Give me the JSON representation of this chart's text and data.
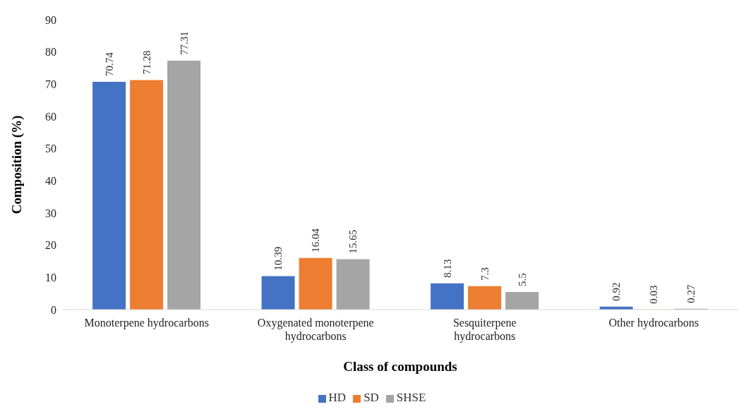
{
  "chart_data": {
    "type": "bar",
    "xlabel": "Class of compounds",
    "ylabel": "Composition (%)",
    "categories": [
      "Monoterpene hydrocarbons",
      "Oxygenated monoterpene hydrocarbons",
      "Sesquiterpene hydrocarbons",
      "Other hydrocarbons"
    ],
    "series": [
      {
        "name": "HD",
        "color": "#4472c4",
        "values": [
          70.74,
          10.39,
          8.13,
          0.92
        ]
      },
      {
        "name": "SD",
        "color": "#ed7d31",
        "values": [
          71.28,
          16.04,
          7.3,
          0.03
        ]
      },
      {
        "name": "SHSE",
        "color": "#a5a5a5",
        "values": [
          77.31,
          15.65,
          5.5,
          0.27
        ]
      }
    ],
    "ylim": [
      0,
      90
    ],
    "yticks": [
      0,
      10,
      20,
      30,
      40,
      50,
      60,
      70,
      80,
      90
    ],
    "grid": false,
    "legend": "bottom",
    "data_labels": true
  }
}
